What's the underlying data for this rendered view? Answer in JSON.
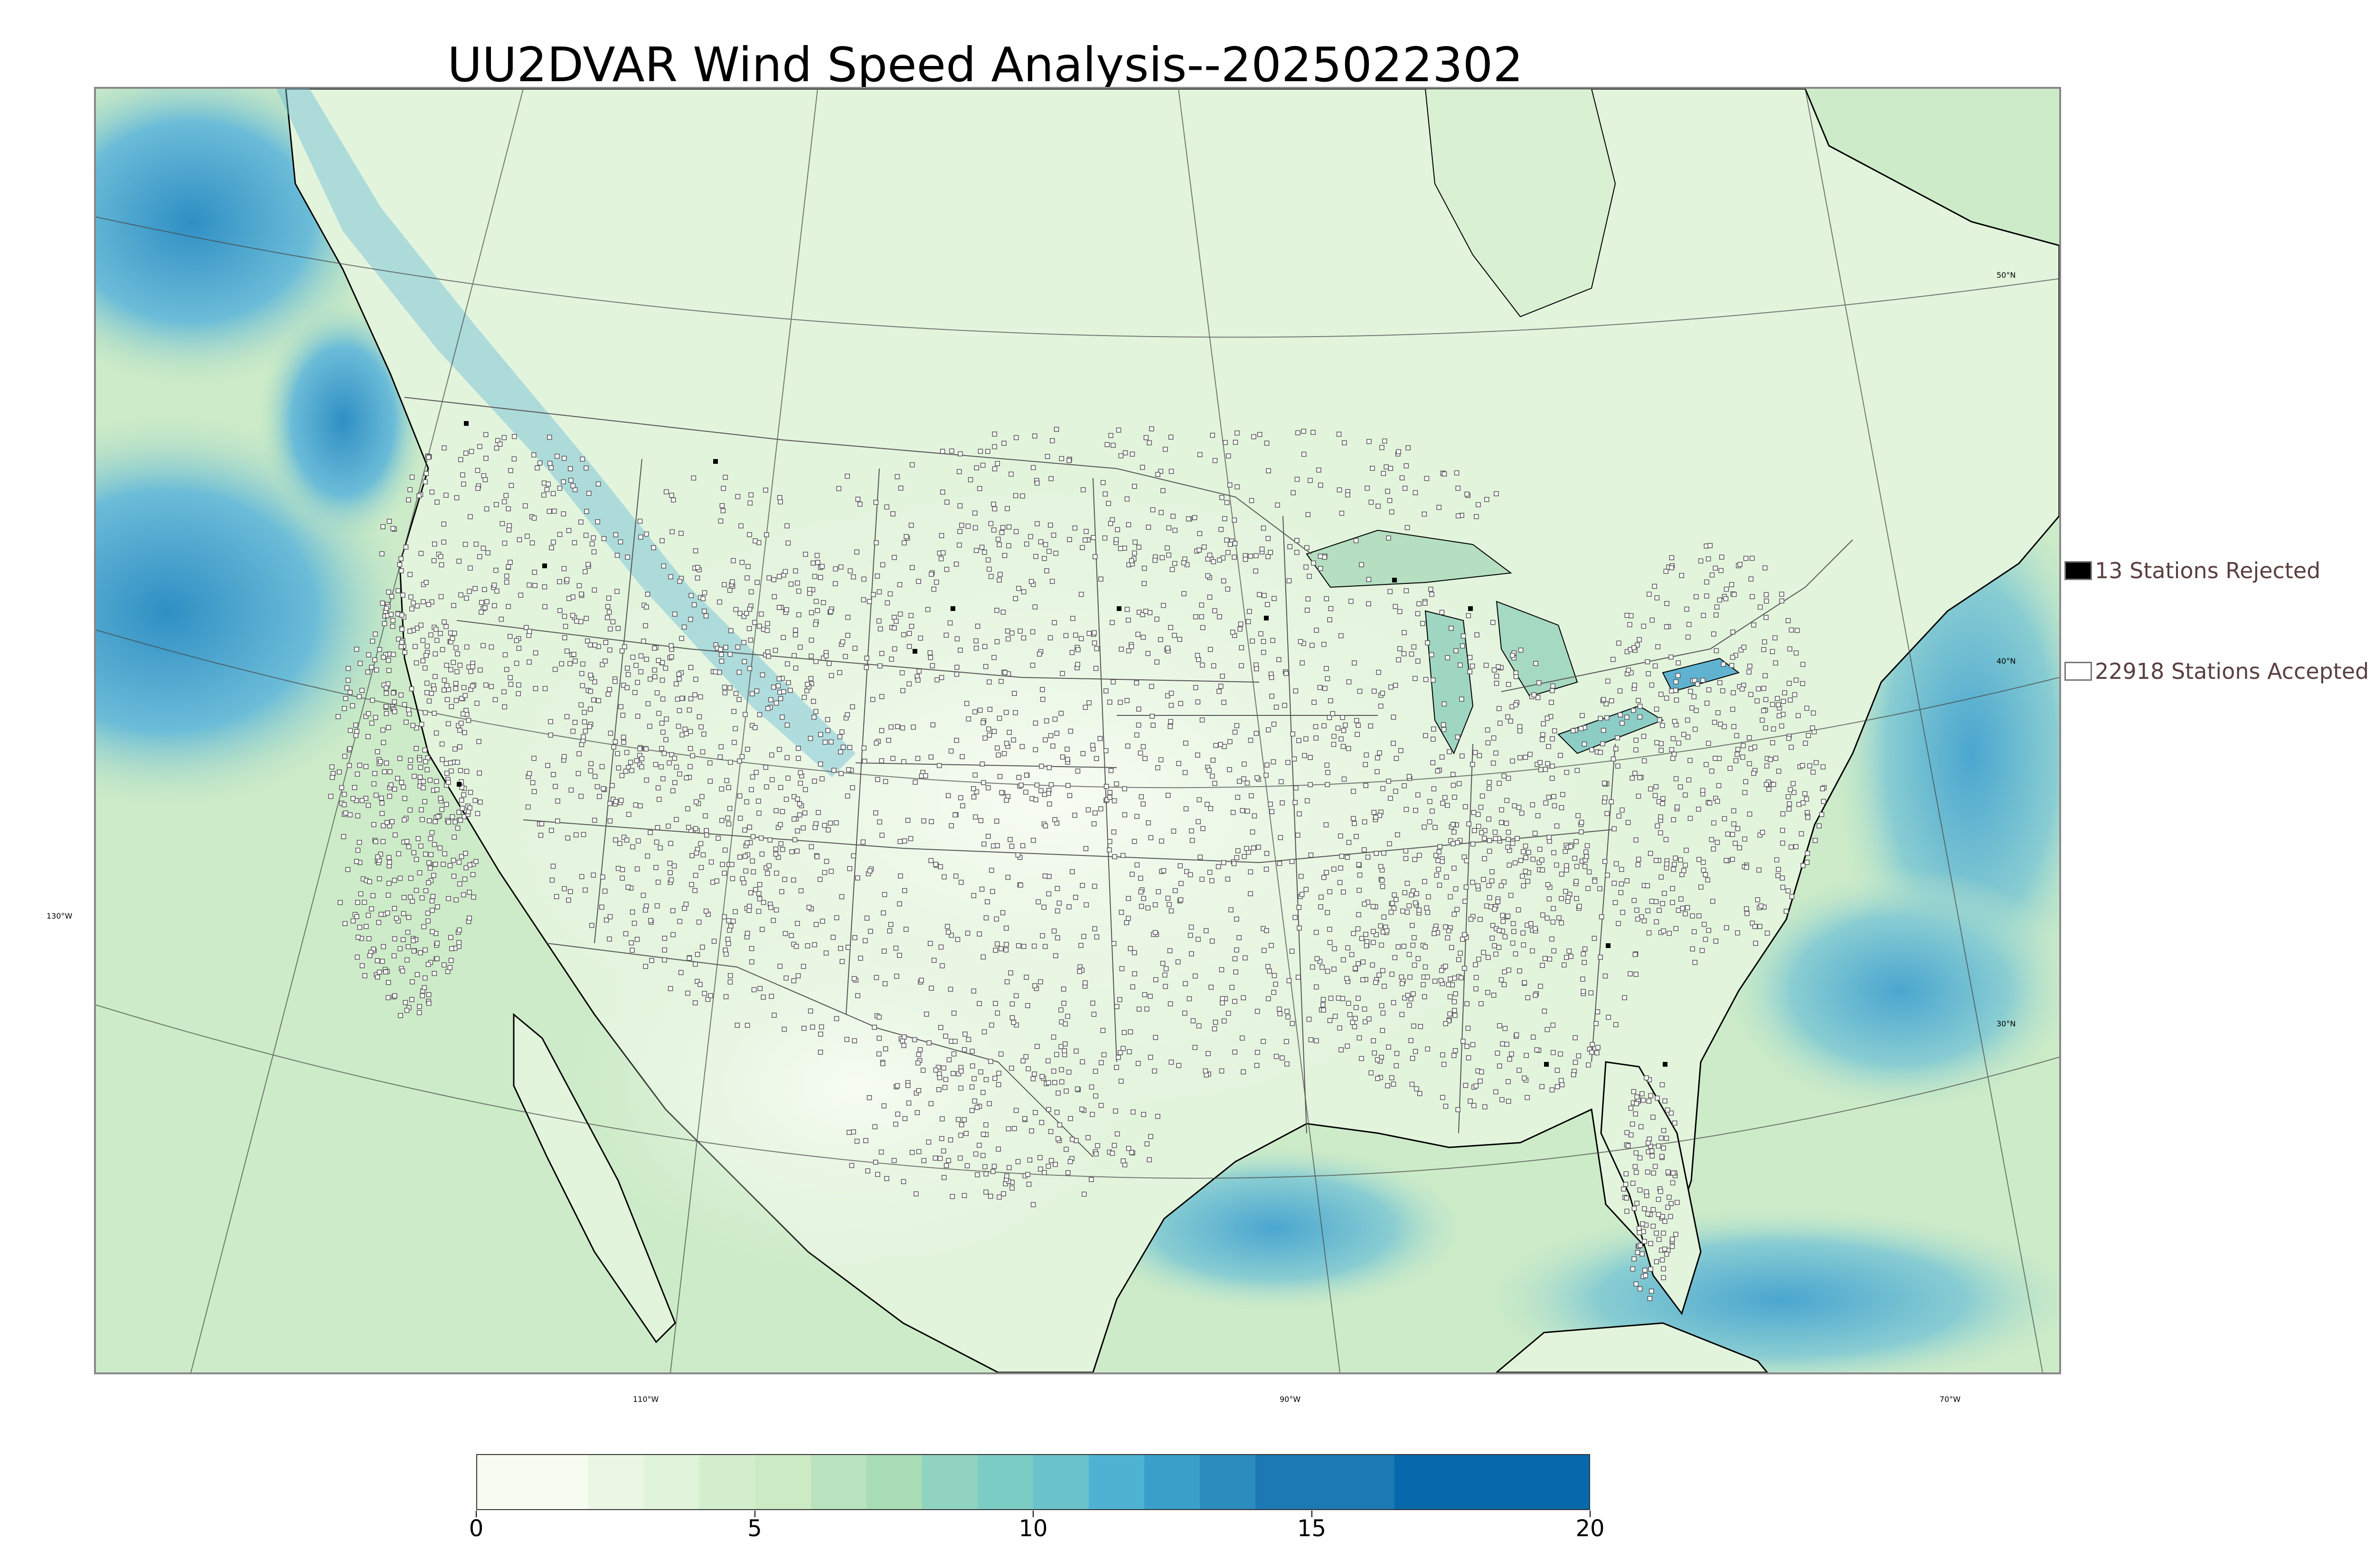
{
  "title": "UU2DVAR Wind Speed Analysis--2025022302",
  "graticule": {
    "lon_labels": [
      "110°W",
      "90°W",
      "70°W",
      "130°W"
    ],
    "lat_labels": [
      "50°N",
      "40°N",
      "30°N"
    ]
  },
  "legend": {
    "rejected_label": "13 Stations Rejected",
    "accepted_label": "22918 Stations Accepted",
    "rejected_color": "#000000",
    "accepted_color": "#ffffff"
  },
  "colorbar": {
    "min": 0,
    "max": 20,
    "tick_values": [
      0,
      5,
      10,
      15,
      20
    ],
    "tick_labels": [
      "0",
      "5",
      "10",
      "15",
      "20"
    ],
    "colors": [
      "#f7fcf0",
      "#eaf7e4",
      "#e0f3db",
      "#d3eecd",
      "#ccebc5",
      "#b8e3be",
      "#a8ddb5",
      "#8fd3c0",
      "#7bccc4",
      "#6ac3cb",
      "#4eb3d3",
      "#3aa0c9",
      "#2b8cbe",
      "#1c79b3",
      "#0868ac"
    ],
    "boundaries": [
      0,
      2,
      3,
      4,
      5,
      6,
      7,
      8,
      9,
      10,
      11,
      12,
      13,
      14,
      16.5,
      20
    ]
  },
  "map_colors": {
    "land_light": "#eef8e8",
    "land_mid": "#d8efd0",
    "ocean_green": "#b9e3c0",
    "ocean_blue": "#4aa6d0",
    "ocean_deep": "#2f8fc4",
    "coast": "#000000",
    "borders": "#555555",
    "station_edge": "#555555"
  }
}
